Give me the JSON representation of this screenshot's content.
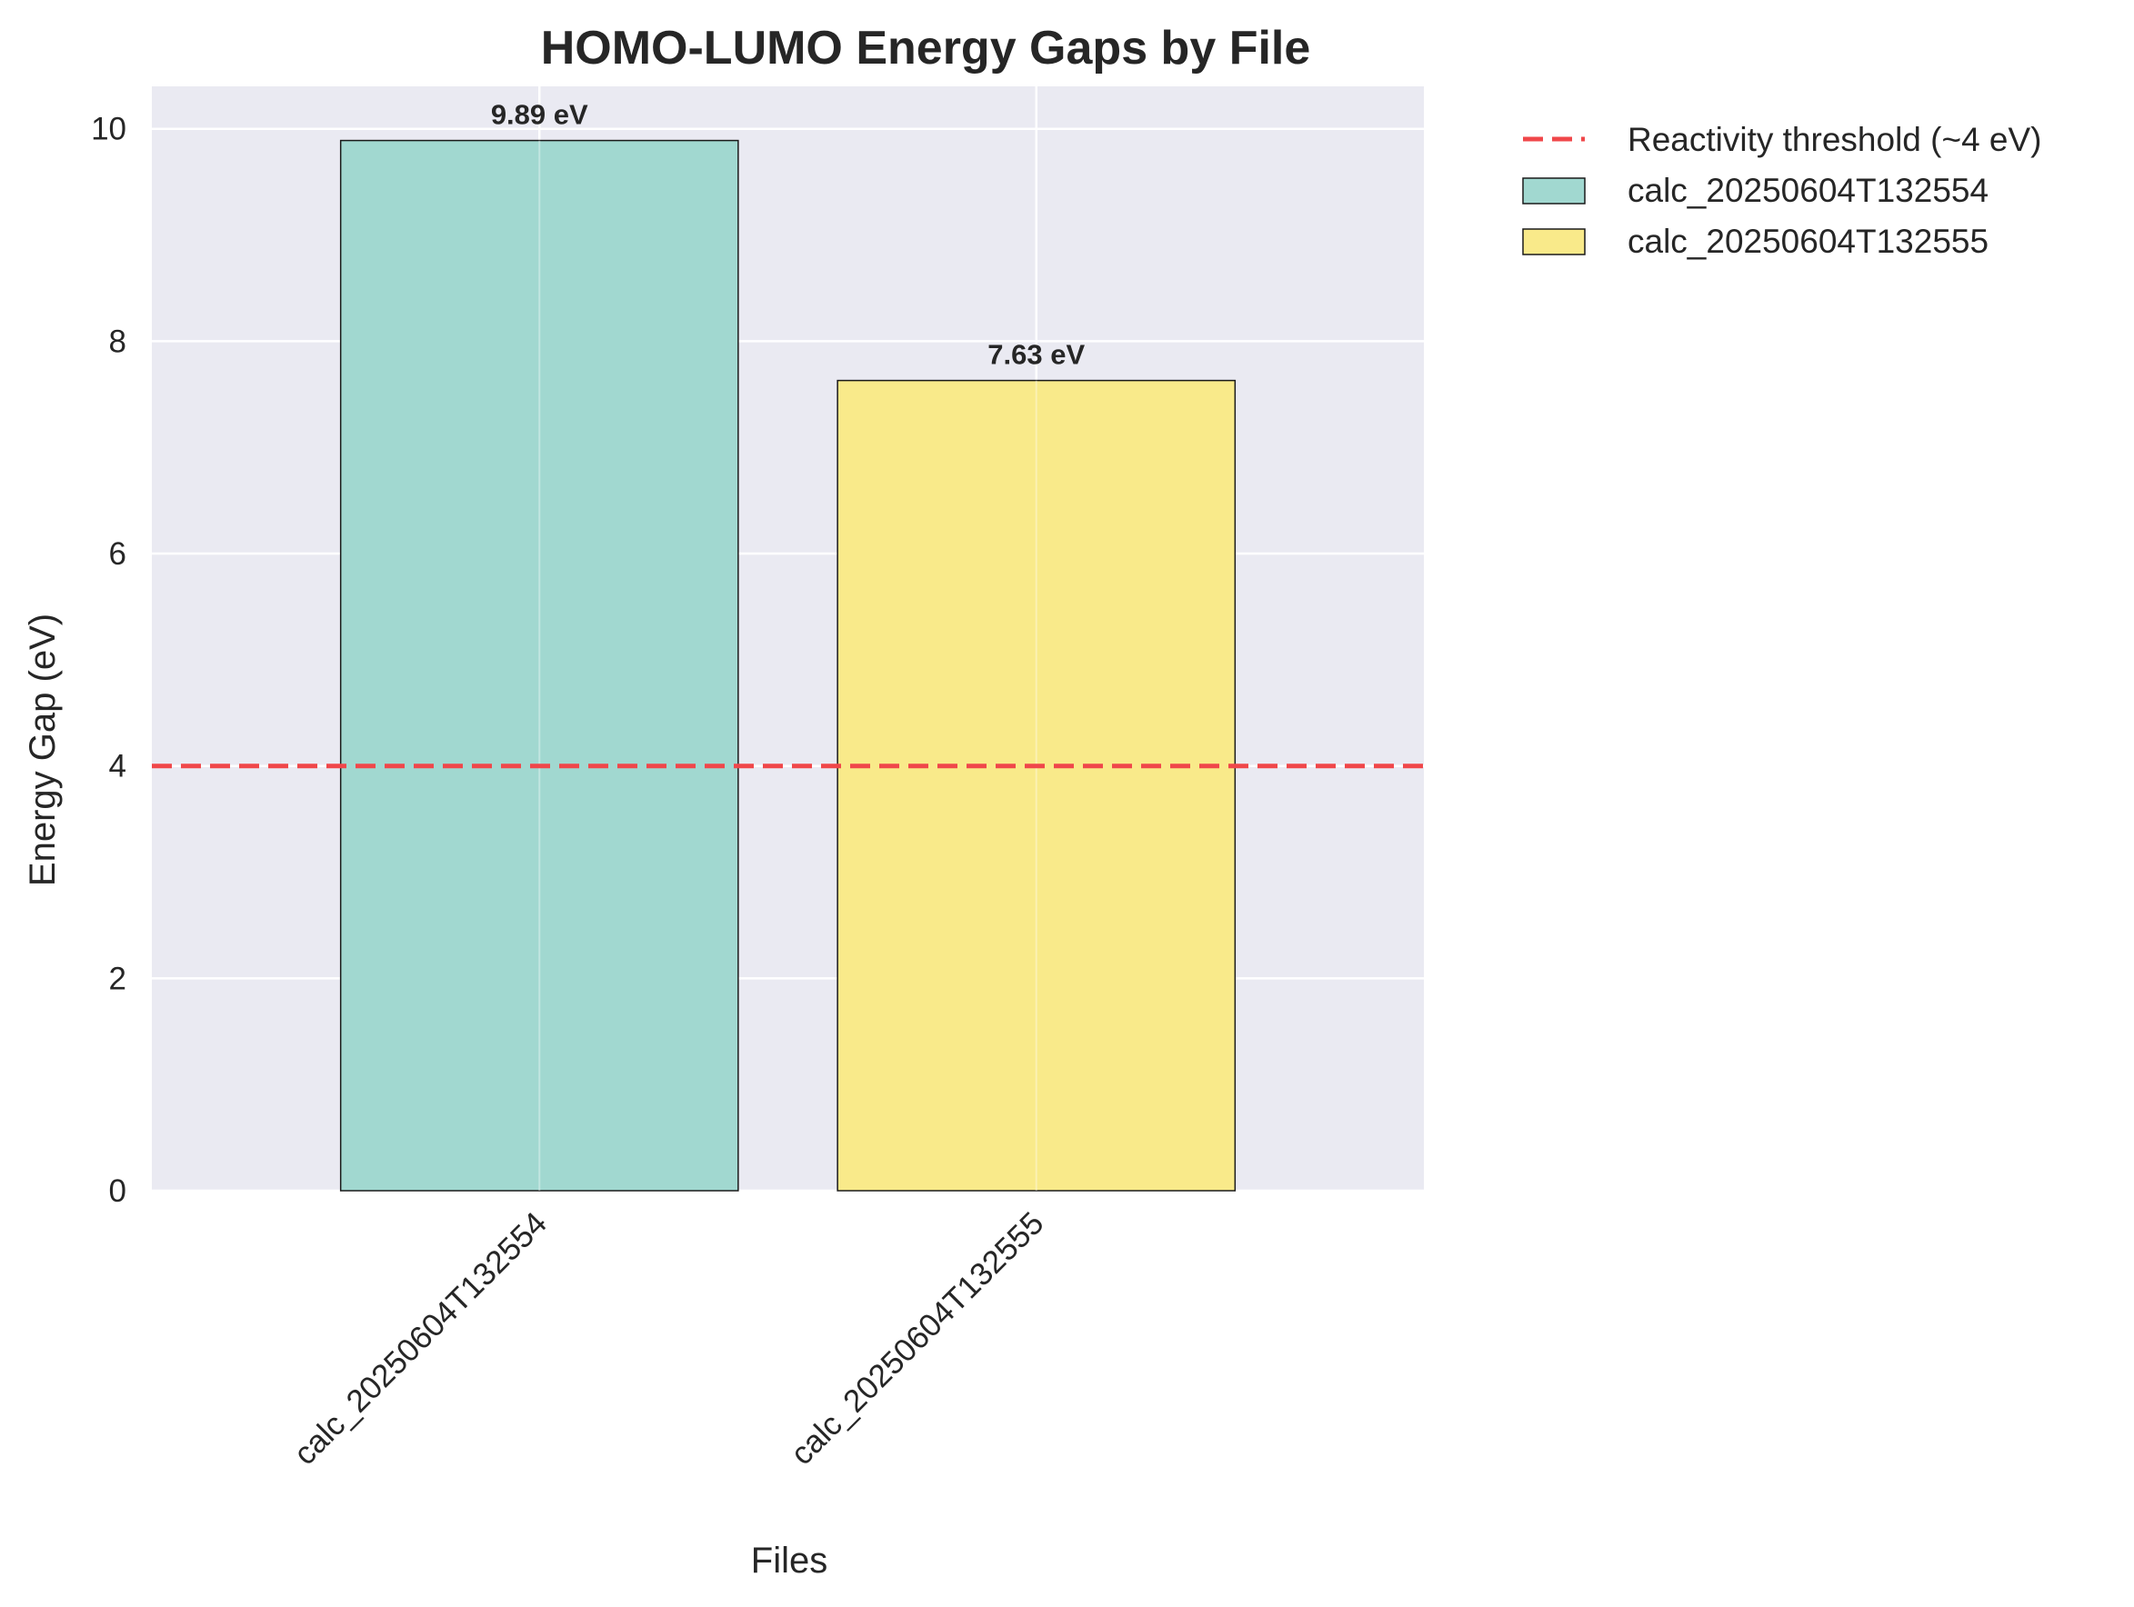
{
  "chart_data": {
    "type": "bar",
    "title": "HOMO-LUMO Energy Gaps by File",
    "xlabel": "Files",
    "ylabel": "Energy Gap (eV)",
    "categories": [
      "calc_20250604T132554",
      "calc_20250604T132555"
    ],
    "values": [
      9.89,
      7.63
    ],
    "data_labels": [
      "9.89 eV",
      "7.63 eV"
    ],
    "colors": [
      "#a1d8d0",
      "#f9ea8a"
    ],
    "ylim": [
      0,
      10.4
    ],
    "yticks": [
      0,
      2,
      4,
      6,
      8,
      10
    ],
    "ytick_labels": [
      "0",
      "2",
      "4",
      "6",
      "8",
      "10"
    ],
    "grid": true,
    "reference_line": {
      "label": "Reactivity threshold (~4 eV)",
      "y": 4,
      "color": "#f0474a",
      "style": "dashed"
    },
    "legend": {
      "placement": "outside-top-right",
      "entries": [
        "Reactivity threshold (~4 eV)",
        "calc_20250604T132554",
        "calc_20250604T132555"
      ]
    },
    "background_color": "#eaeaf2"
  }
}
